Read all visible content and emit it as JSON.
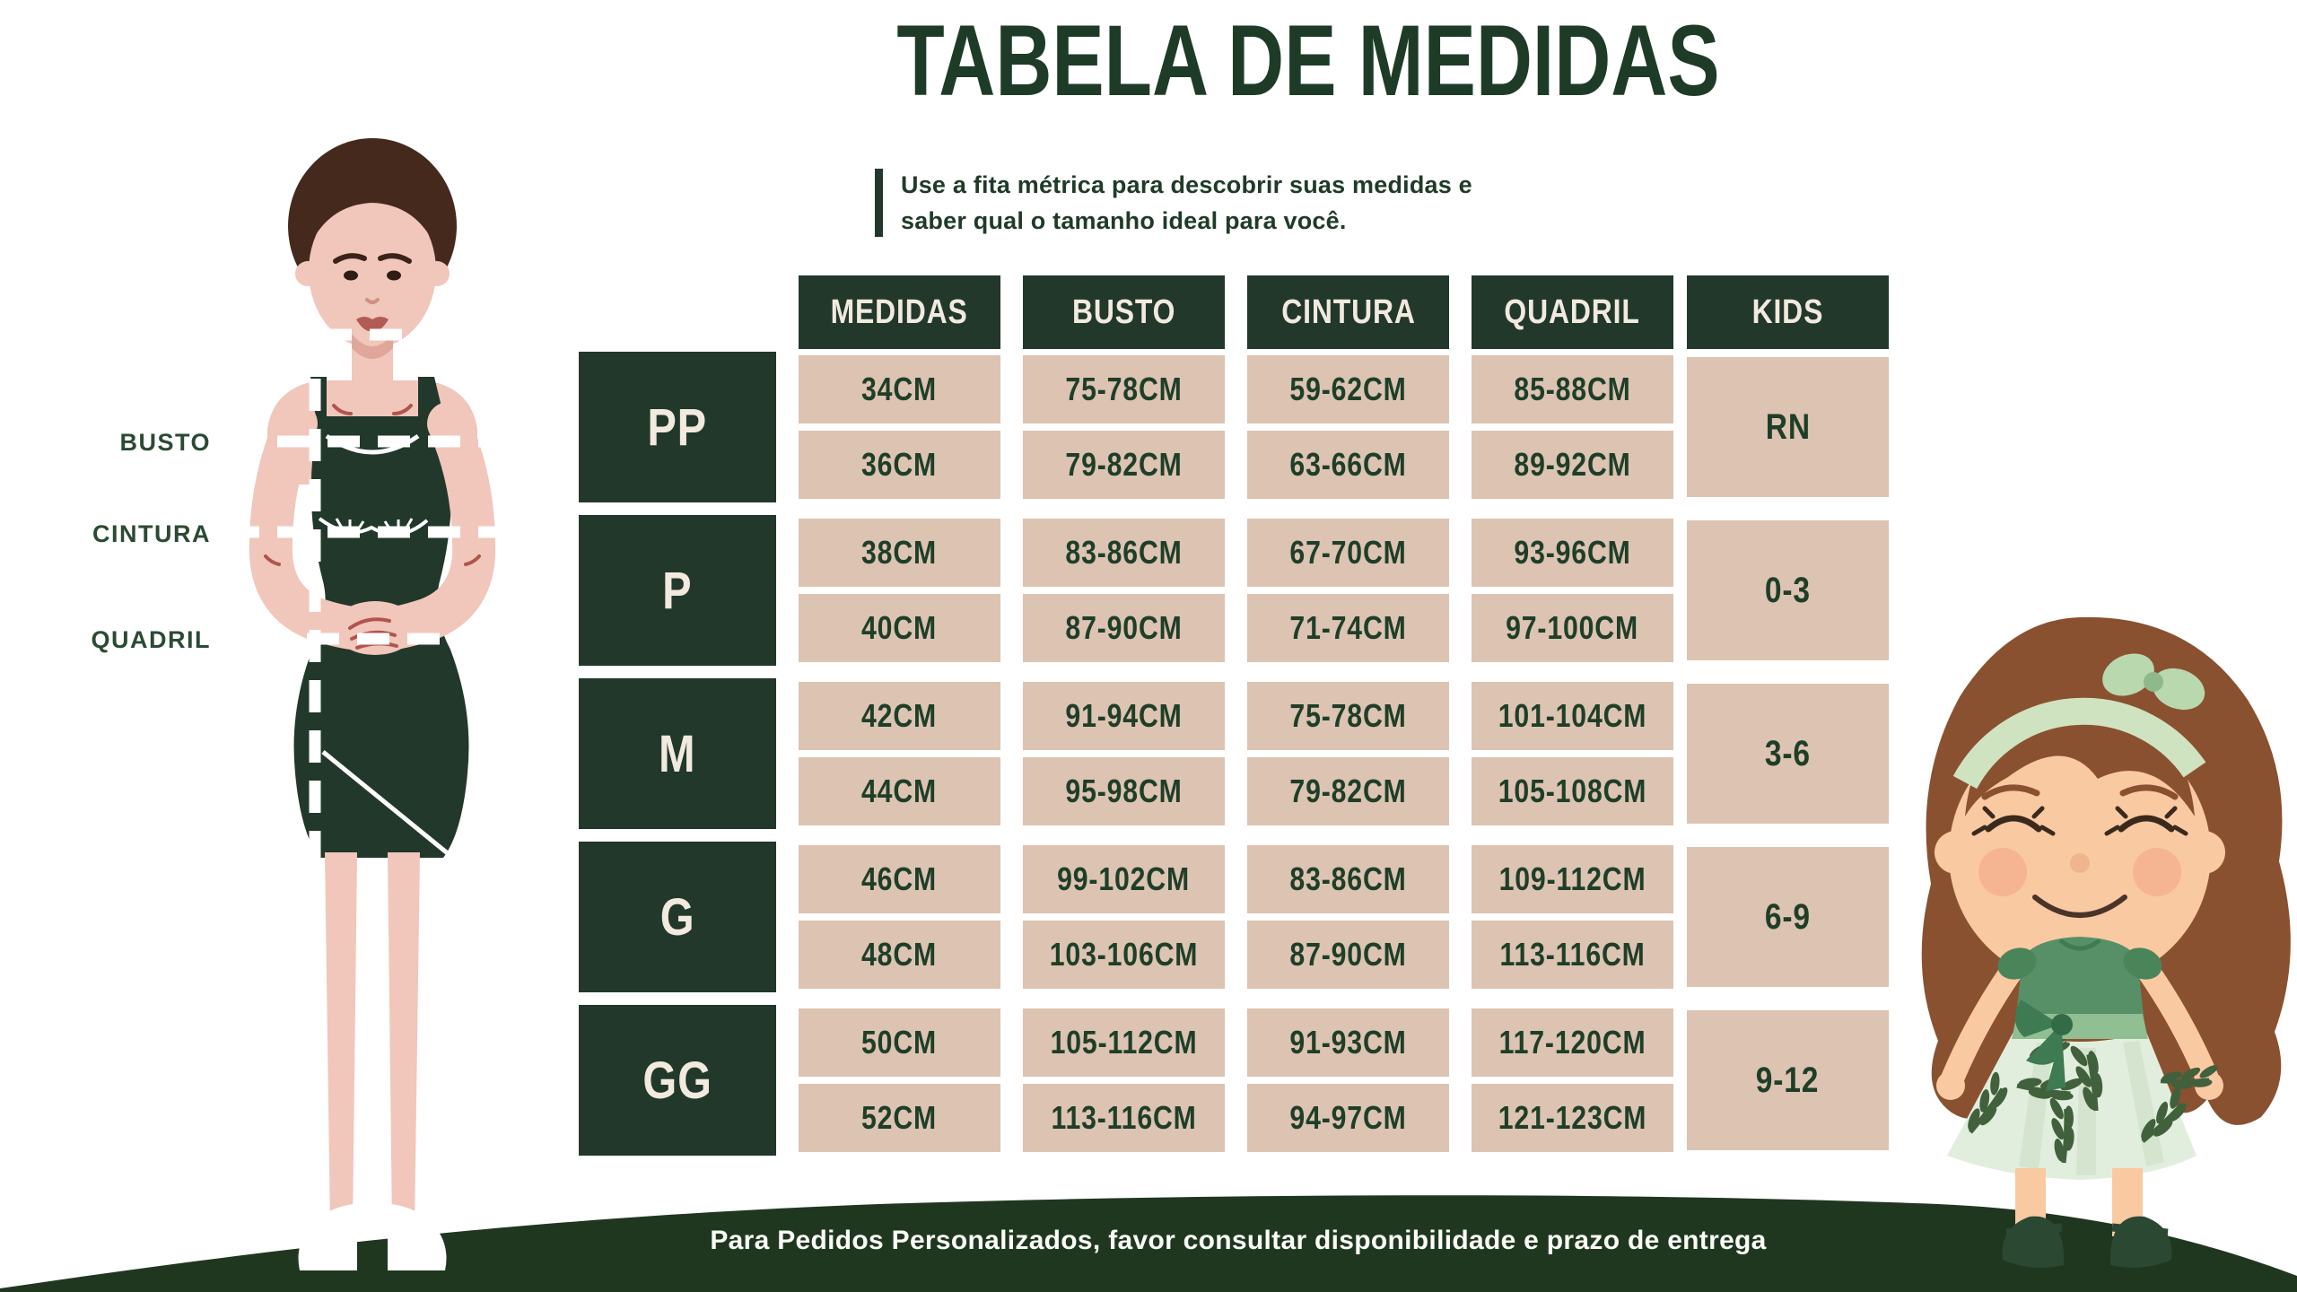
{
  "title": "TABELA DE MEDIDAS",
  "subtitle": {
    "line1": "Use a fita métrica para descobrir suas medidas e",
    "line2": "saber qual o tamanho ideal para você."
  },
  "measure_labels": {
    "busto": "BUSTO",
    "cintura": "CINTURA",
    "quadril": "QUADRIL"
  },
  "table": {
    "headers": [
      "MEDIDAS",
      "BUSTO",
      "CINTURA",
      "QUADRIL",
      "KIDS"
    ],
    "groups": [
      {
        "size": "PP",
        "kids": "RN",
        "rows": [
          [
            "34CM",
            "75-78CM",
            "59-62CM",
            "85-88CM"
          ],
          [
            "36CM",
            "79-82CM",
            "63-66CM",
            "89-92CM"
          ]
        ]
      },
      {
        "size": "P",
        "kids": "0-3",
        "rows": [
          [
            "38CM",
            "83-86CM",
            "67-70CM",
            "93-96CM"
          ],
          [
            "40CM",
            "87-90CM",
            "71-74CM",
            "97-100CM"
          ]
        ]
      },
      {
        "size": "M",
        "kids": "3-6",
        "rows": [
          [
            "42CM",
            "91-94CM",
            "75-78CM",
            "101-104CM"
          ],
          [
            "44CM",
            "95-98CM",
            "79-82CM",
            "105-108CM"
          ]
        ]
      },
      {
        "size": "G",
        "kids": "6-9",
        "rows": [
          [
            "46CM",
            "99-102CM",
            "83-86CM",
            "109-112CM"
          ],
          [
            "48CM",
            "103-106CM",
            "87-90CM",
            "113-116CM"
          ]
        ]
      },
      {
        "size": "GG",
        "kids": "9-12",
        "rows": [
          [
            "50CM",
            "105-112CM",
            "91-93CM",
            "117-120CM"
          ],
          [
            "52CM",
            "113-116CM",
            "94-97CM",
            "121-123CM"
          ]
        ]
      }
    ]
  },
  "footer": {
    "note": "Para Pedidos Personalizados, favor consultar disponibilidade e prazo de entrega"
  },
  "colors": {
    "dark_green": "#21382a",
    "beige_cell": "#dcc3b2",
    "cream_text": "#f2e9df",
    "cell_text_green": "#1f3e28",
    "title_green": "#1e3b28",
    "footer_green": "#20371f",
    "woman_skin": "#f1c6bb",
    "woman_hair": "#46291d",
    "girl_skin": "#f9c9a2",
    "girl_hair": "#8a5130",
    "girl_top_green": "#579067",
    "girl_skirt": "#e2eedd",
    "headband_green": "#cfe3c0"
  }
}
